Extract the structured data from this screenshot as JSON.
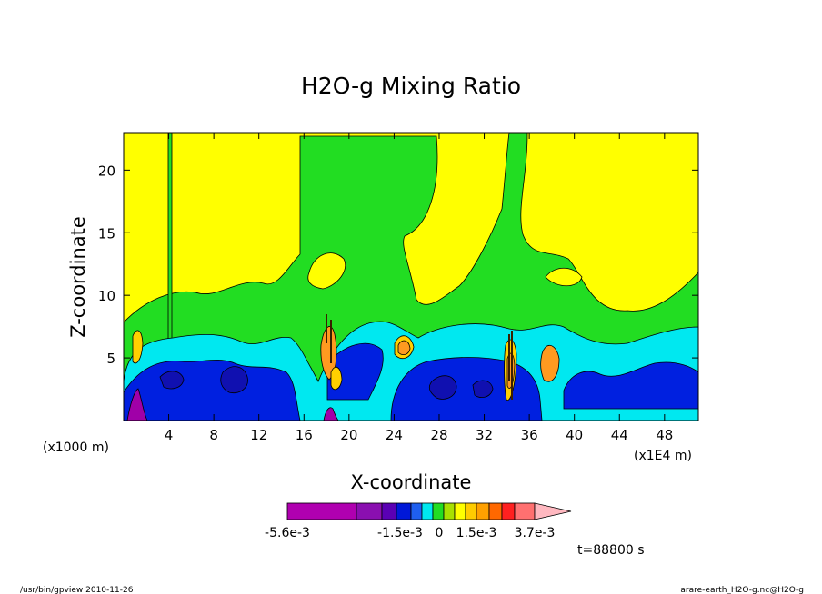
{
  "chart_data": {
    "type": "heatmap",
    "title": "H2O-g Mixing Ratio",
    "xlabel": "X-coordinate",
    "ylabel": "Z-coordinate",
    "x_tick_labels": [
      "4",
      "8",
      "12",
      "16",
      "20",
      "24",
      "28",
      "32",
      "36",
      "40",
      "44",
      "48"
    ],
    "x_ticks": [
      4,
      8,
      12,
      16,
      20,
      24,
      28,
      32,
      36,
      40,
      44,
      48
    ],
    "xlim": [
      0,
      51
    ],
    "x_unit_left": "(x1000 m)",
    "x_unit_right": "(x1E4 m)",
    "y_tick_labels": [
      "5",
      "10",
      "15",
      "20"
    ],
    "y_ticks": [
      5,
      10,
      15,
      20
    ],
    "ylim": [
      0,
      23
    ],
    "colorbar": {
      "colors": [
        "#b000b0",
        "#8a0fb0",
        "#5a00b4",
        "#0018d8",
        "#1f5ff0",
        "#00e8f0",
        "#22dd22",
        "#a8e000",
        "#ffff00",
        "#ffcc00",
        "#ffa000",
        "#ff6800",
        "#ff2020",
        "#ff7070",
        "#ffb8c0"
      ],
      "labels": [
        "-5.6e-3",
        "-1.5e-3",
        "0",
        "1.5e-3",
        "3.7e-3"
      ]
    },
    "palette": {
      "bg": "#ffff00",
      "green": "#22dd22",
      "cyan": "#00e8f0",
      "blue": "#0020e0",
      "navy": "#1010b0",
      "orange": "#ff9a20",
      "gold": "#ffd000",
      "magenta": "#a000a8"
    },
    "time_label": "t=88800 s"
  },
  "footer": {
    "left": "/usr/bin/gpview 2010-11-26",
    "right": "arare-earth_H2O-g.nc@H2O-g"
  }
}
